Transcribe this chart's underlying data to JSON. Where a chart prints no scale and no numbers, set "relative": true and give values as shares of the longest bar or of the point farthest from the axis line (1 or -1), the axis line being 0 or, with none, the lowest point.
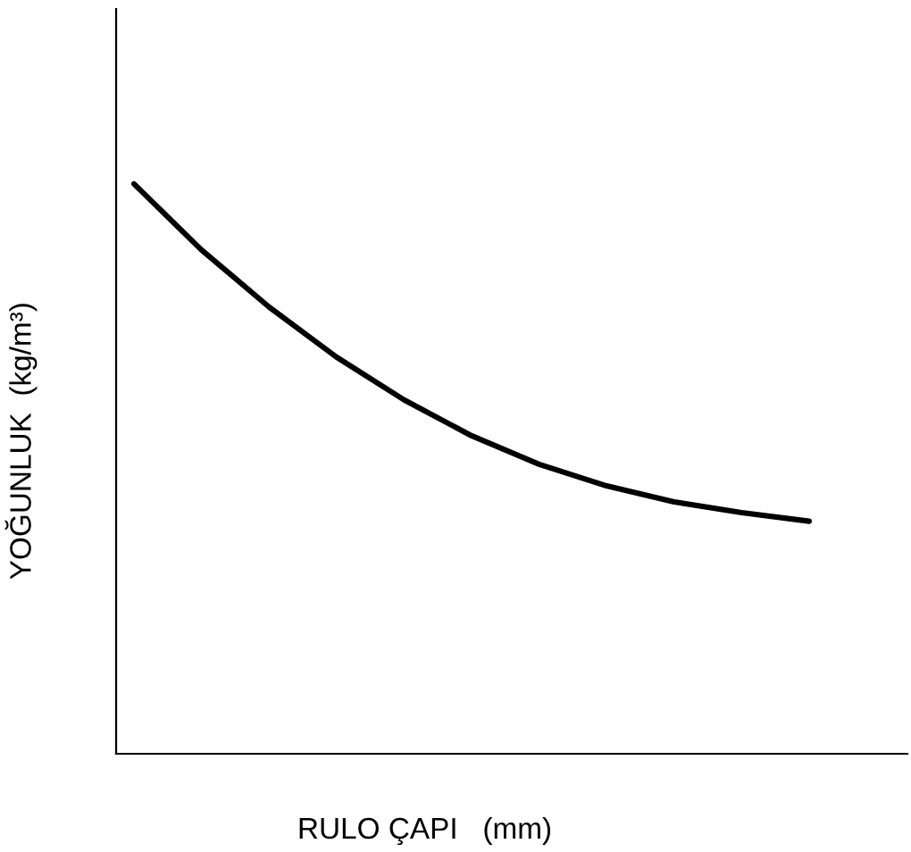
{
  "chart_data": {
    "type": "line",
    "relative": true,
    "xlabel": "RULO ÇAPI   (mm)",
    "ylabel": "YOĞUNLUK  (kg/m³)",
    "categories": [
      null,
      null,
      null,
      null,
      null,
      null,
      null,
      null,
      null,
      null,
      null
    ],
    "series": [
      {
        "color": "#000000",
        "values": [
          1,
          0.884,
          0.784,
          0.696,
          0.621,
          0.558,
          0.508,
          0.47,
          0.442,
          0.423,
          0.408
        ]
      }
    ],
    "grid": false,
    "legend": false,
    "marker": "none",
    "line_style": "solid"
  }
}
